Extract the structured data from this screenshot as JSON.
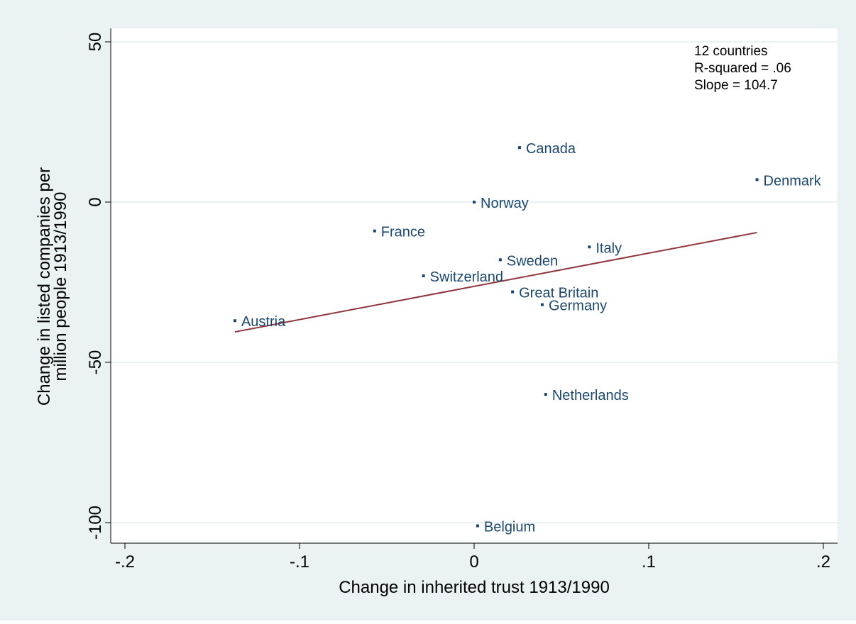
{
  "chart_data": {
    "type": "scatter",
    "xlabel": "Change in inherited trust 1913/1990",
    "ylabel_lines": [
      "Change in listed companies per",
      "million people 1913/1990"
    ],
    "xlim": [
      -0.2,
      0.2
    ],
    "ylim": [
      -100,
      50
    ],
    "x_ticks": [
      {
        "value": -0.2,
        "label": "-.2"
      },
      {
        "value": -0.1,
        "label": "-.1"
      },
      {
        "value": 0,
        "label": "0"
      },
      {
        "value": 0.1,
        "label": ".1"
      },
      {
        "value": 0.2,
        "label": ".2"
      }
    ],
    "y_ticks": [
      {
        "value": -100,
        "label": "-100"
      },
      {
        "value": -50,
        "label": "-50"
      },
      {
        "value": 0,
        "label": "0"
      },
      {
        "value": 50,
        "label": "50"
      }
    ],
    "grid": "horizontal",
    "points": [
      {
        "label": "Canada",
        "x": 0.026,
        "y": 17
      },
      {
        "label": "Denmark",
        "x": 0.162,
        "y": 7
      },
      {
        "label": "Norway",
        "x": 0.0,
        "y": 0
      },
      {
        "label": "France",
        "x": -0.057,
        "y": -9
      },
      {
        "label": "Italy",
        "x": 0.066,
        "y": -14
      },
      {
        "label": "Sweden",
        "x": 0.015,
        "y": -18
      },
      {
        "label": "Switzerland",
        "x": -0.029,
        "y": -23
      },
      {
        "label": "Great Britain",
        "x": 0.022,
        "y": -28
      },
      {
        "label": "Germany",
        "x": 0.039,
        "y": -32
      },
      {
        "label": "Austria",
        "x": -0.137,
        "y": -37
      },
      {
        "label": "Netherlands",
        "x": 0.041,
        "y": -60
      },
      {
        "label": "Belgium",
        "x": 0.002,
        "y": -101
      }
    ],
    "fit_line": {
      "x": [
        -0.137,
        0.162
      ],
      "y": [
        -40.5,
        -9.5
      ]
    },
    "annotation_lines": [
      "12 countries",
      "R-squared = .06",
      "Slope = 104.7"
    ],
    "colors": {
      "outer_background": "#eaf2f3",
      "plot_background": "#ffffff",
      "grid": "#eaf2f3",
      "marker": "#1a476f",
      "fit_line": "#90353b",
      "text": "#000000"
    }
  }
}
